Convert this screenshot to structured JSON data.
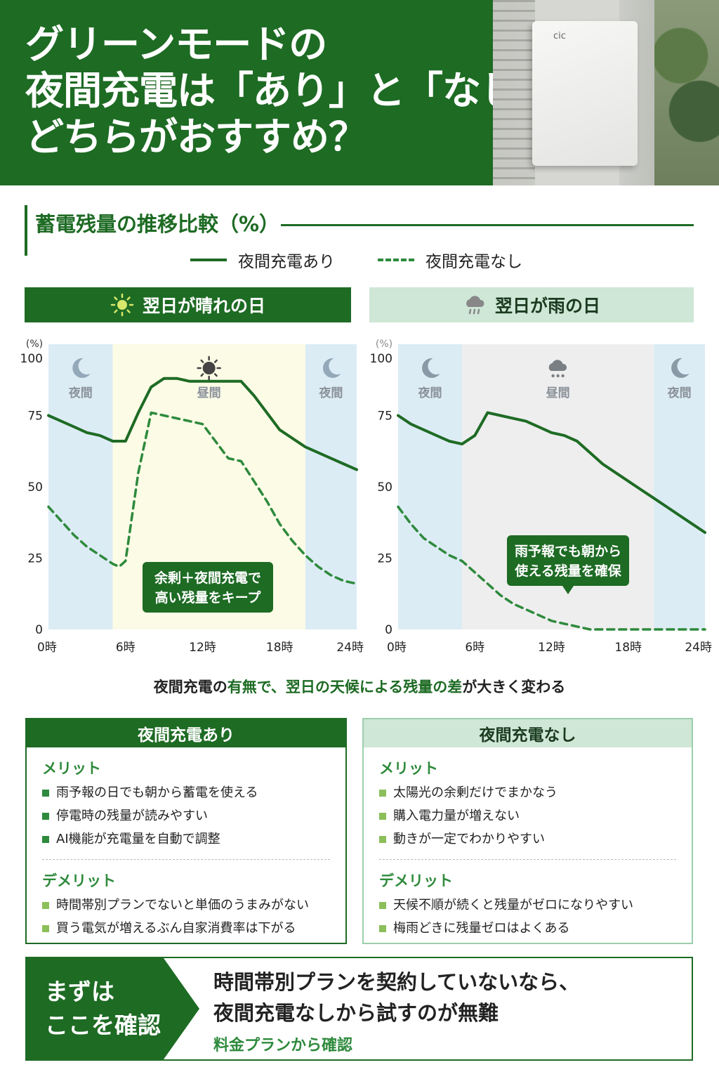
{
  "header": {
    "title_lines": [
      "グリーンモードの",
      "夜間充電は「あり」と「なし」",
      "どちらがおすすめ？"
    ],
    "photo_logo": "cic"
  },
  "section": {
    "title": "蓄電残量の推移比較（%）"
  },
  "legend": {
    "with": "夜間充電あり",
    "without": "夜間充電なし"
  },
  "colors": {
    "brand": "#1e6b24",
    "accent": "#2e8a3c",
    "light": "#cfe7d6",
    "night_band": "#dcecf5",
    "sunny_band": "#fbfbe6",
    "rainy_band": "#eeeeee"
  },
  "chart_data": [
    {
      "type": "line",
      "title": "翌日が晴れの日",
      "icon": "sun-icon",
      "ylabel": "(%)",
      "ylim": [
        0,
        100
      ],
      "yticks": [
        "0",
        "25",
        "50",
        "75",
        "100"
      ],
      "xlim": [
        0,
        24
      ],
      "xticks": [
        "0時",
        "6時",
        "12時",
        "18時",
        "24時"
      ],
      "grid": false,
      "bands": [
        {
          "from": 0,
          "to": 5,
          "type": "night",
          "label": "夜間",
          "icon": "moon-icon"
        },
        {
          "from": 5,
          "to": 20,
          "type": "sunny",
          "label": "昼間",
          "icon": "sun-icon"
        },
        {
          "from": 20,
          "to": 24,
          "type": "night",
          "label": "夜間",
          "icon": "moon-icon"
        }
      ],
      "series": [
        {
          "name": "夜間充電あり",
          "style": "solid",
          "x": [
            0,
            1,
            2,
            3,
            4,
            5,
            6,
            7,
            8,
            9,
            10,
            11,
            12,
            13,
            14,
            15,
            16,
            17,
            18,
            19,
            20,
            21,
            22,
            23,
            24
          ],
          "y": [
            75,
            73,
            71,
            69,
            68,
            66,
            66,
            76,
            85,
            88,
            88,
            87,
            87,
            87,
            87,
            87,
            82,
            76,
            70,
            67,
            64,
            62,
            60,
            58,
            56
          ]
        },
        {
          "name": "夜間充電なし",
          "style": "dashed",
          "x": [
            0,
            1,
            2,
            3,
            4,
            5,
            5.5,
            6,
            7,
            8,
            9,
            10,
            11,
            12,
            13,
            14,
            15,
            16,
            17,
            18,
            19,
            20,
            21,
            22,
            23,
            24
          ],
          "y": [
            43,
            38,
            33,
            29,
            26,
            23,
            22,
            24,
            55,
            76,
            75,
            74,
            73,
            72,
            66,
            60,
            59,
            52,
            45,
            37,
            31,
            26,
            22,
            19,
            17,
            16
          ]
        }
      ],
      "annotation": "余剰＋夜間充電で\n高い残量をキープ"
    },
    {
      "type": "line",
      "title": "翌日が雨の日",
      "icon": "rain-cloud-icon",
      "ylabel": "(%)",
      "ylim": [
        0,
        100
      ],
      "yticks": [
        "0",
        "25",
        "50",
        "75",
        "100"
      ],
      "xlim": [
        0,
        24
      ],
      "xticks": [
        "0時",
        "6時",
        "12時",
        "18時",
        "24時"
      ],
      "grid": false,
      "bands": [
        {
          "from": 0,
          "to": 5,
          "type": "night",
          "label": "夜間",
          "icon": "moon-icon"
        },
        {
          "from": 5,
          "to": 20,
          "type": "rainy",
          "label": "昼間",
          "icon": "rain-cloud-icon"
        },
        {
          "from": 20,
          "to": 24,
          "type": "night",
          "label": "夜間",
          "icon": "moon-icon"
        }
      ],
      "series": [
        {
          "name": "夜間充電あり",
          "style": "solid",
          "x": [
            0,
            1,
            2,
            3,
            4,
            5,
            6,
            7,
            8,
            9,
            10,
            11,
            12,
            13,
            14,
            15,
            16,
            17,
            18,
            19,
            20,
            21,
            22,
            23,
            24
          ],
          "y": [
            75,
            72,
            70,
            68,
            66,
            65,
            68,
            76,
            75,
            74,
            73,
            71,
            69,
            68,
            66,
            62,
            58,
            55,
            52,
            49,
            46,
            43,
            40,
            37,
            34
          ]
        },
        {
          "name": "夜間充電なし",
          "style": "dashed",
          "x": [
            0,
            1,
            2,
            3,
            4,
            5,
            6,
            7,
            8,
            9,
            10,
            11,
            12,
            13,
            14,
            15,
            16,
            17,
            18,
            19,
            20,
            21,
            22,
            23,
            24
          ],
          "y": [
            43,
            37,
            32,
            29,
            26,
            24,
            20,
            16,
            12,
            9,
            7,
            5,
            3,
            2,
            1,
            0,
            0,
            0,
            0,
            0,
            0,
            0,
            0,
            0,
            0
          ]
        }
      ],
      "annotation": "雨予報でも朝から\n使える残量を確保"
    }
  ],
  "summary": {
    "part1": "夜間充電の",
    "part2": "有無で、翌日の天候による残量の差",
    "part3": "が大きく変わる"
  },
  "compare": {
    "with": {
      "title": "夜間充電あり",
      "merit_label": "メリット",
      "merits": [
        "雨予報の日でも朝から蓄電を使える",
        "停電時の残量が読みやすい",
        "AI機能が充電量を自動で調整"
      ],
      "demerit_label": "デメリット",
      "demerits": [
        "時間帯別プランでないと単価のうまみがない",
        "買う電気が増えるぶん自家消費率は下がる"
      ]
    },
    "without": {
      "title": "夜間充電なし",
      "merit_label": "メリット",
      "merits": [
        "太陽光の余剰だけでまかなう",
        "購入電力量が増えない",
        "動きが一定でわかりやすい"
      ],
      "demerit_label": "デメリット",
      "demerits": [
        "天候不順が続くと残量がゼロになりやすい",
        "梅雨どきに残量ゼロはよくある"
      ]
    }
  },
  "cta": {
    "left_lines": [
      "まずは",
      "ここを確認"
    ],
    "main_lines": [
      "時間帯別プランを契約していないなら、",
      "夜間充電なしから試すのが無難"
    ],
    "link": "料金プランから確認"
  }
}
